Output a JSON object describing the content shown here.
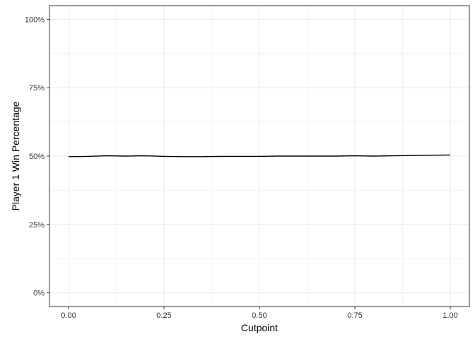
{
  "chart_data": {
    "type": "line",
    "title": "",
    "xlabel": "Cutpoint",
    "ylabel": "Player 1 Win Percentage",
    "xlim": [
      -0.05,
      1.05
    ],
    "ylim": [
      -0.05,
      1.05
    ],
    "x_ticks": [
      {
        "value": 0.0,
        "label": "0.00"
      },
      {
        "value": 0.25,
        "label": "0.25"
      },
      {
        "value": 0.5,
        "label": "0.50"
      },
      {
        "value": 0.75,
        "label": "0.75"
      },
      {
        "value": 1.0,
        "label": "1.00"
      }
    ],
    "y_ticks": [
      {
        "value": 0.0,
        "label": "0%"
      },
      {
        "value": 0.25,
        "label": "25%"
      },
      {
        "value": 0.5,
        "label": "50%"
      },
      {
        "value": 0.75,
        "label": "75%"
      },
      {
        "value": 1.0,
        "label": "100%"
      }
    ],
    "grid": true,
    "legend": "none",
    "colors": {
      "line": "#000000",
      "grid": "#ebebeb",
      "panel_border": "#333333"
    },
    "series": [
      {
        "x": [
          0.0,
          0.05,
          0.1,
          0.15,
          0.2,
          0.25,
          0.3,
          0.35,
          0.4,
          0.45,
          0.5,
          0.55,
          0.6,
          0.65,
          0.7,
          0.75,
          0.8,
          0.85,
          0.9,
          0.95,
          1.0
        ],
        "values": [
          0.498,
          0.499,
          0.501,
          0.5,
          0.501,
          0.499,
          0.498,
          0.498,
          0.499,
          0.499,
          0.499,
          0.5,
          0.5,
          0.5,
          0.5,
          0.501,
          0.5,
          0.501,
          0.502,
          0.503,
          0.504
        ]
      }
    ]
  }
}
